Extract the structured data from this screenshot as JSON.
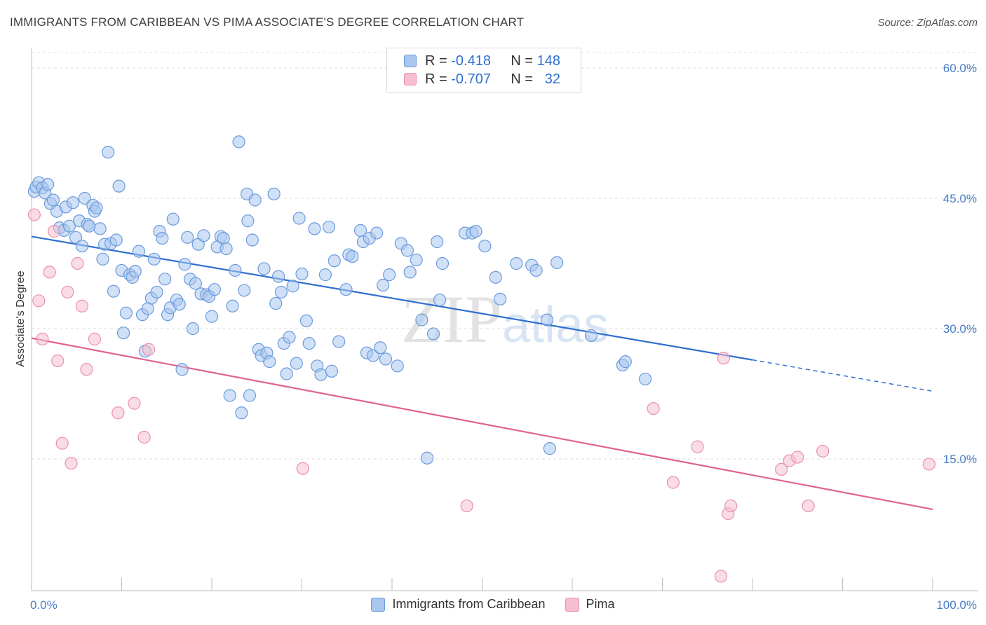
{
  "title": "IMMIGRANTS FROM CARIBBEAN VS PIMA ASSOCIATE'S DEGREE CORRELATION CHART",
  "source": "Source: ZipAtlas.com",
  "watermark": "ZIPatlas",
  "legend": {
    "rows": [
      {
        "r_label": "R =",
        "r_value": "-0.418",
        "n_label": "N =",
        "n_value": "148"
      },
      {
        "r_label": "R =",
        "r_value": "-0.707",
        "n_label": "N =",
        "n_value": "32"
      }
    ]
  },
  "colors": {
    "blue_fill": "#a9c6ef",
    "blue_stroke": "#6b9bdc",
    "blue_line": "#2f6fd0",
    "pink_fill": "#f5bfd0",
    "pink_stroke": "#e892ad",
    "pink_line": "#e0628f"
  },
  "chart_data": {
    "type": "scatter",
    "title": "IMMIGRANTS FROM CARIBBEAN VS PIMA ASSOCIATE'S DEGREE CORRELATION CHART",
    "xlabel": "",
    "ylabel": "Associate's Degree",
    "xlim": [
      0,
      100
    ],
    "ylim": [
      0,
      62
    ],
    "x_tick_labels": [
      "0.0%",
      "100.0%"
    ],
    "y_ticks": [
      15,
      30,
      45,
      60
    ],
    "y_tick_labels": [
      "15.0%",
      "30.0%",
      "45.0%",
      "60.0%"
    ],
    "grid": "horizontal dashed",
    "legend_position": "bottom",
    "series": [
      {
        "name": "Immigrants from Caribbean",
        "color": "#6b9bdc",
        "trend": {
          "x": [
            0,
            80
          ],
          "y": [
            40.6,
            26.4
          ],
          "dashed_extension": {
            "x": [
              80,
              100
            ],
            "y": [
              26.4,
              22.8
            ]
          }
        },
        "points": [
          [
            0.3,
            45.8
          ],
          [
            0.5,
            46.3
          ],
          [
            0.8,
            46.8
          ],
          [
            1.2,
            46.2
          ],
          [
            1.5,
            45.6
          ],
          [
            1.8,
            46.6
          ],
          [
            2.1,
            44.4
          ],
          [
            2.4,
            44.8
          ],
          [
            2.8,
            43.5
          ],
          [
            3.1,
            41.6
          ],
          [
            3.6,
            41.3
          ],
          [
            3.8,
            44.0
          ],
          [
            4.2,
            41.8
          ],
          [
            4.6,
            44.5
          ],
          [
            4.9,
            40.5
          ],
          [
            5.3,
            42.4
          ],
          [
            5.6,
            39.5
          ],
          [
            5.9,
            45.0
          ],
          [
            6.2,
            42.0
          ],
          [
            6.4,
            41.8
          ],
          [
            6.8,
            44.2
          ],
          [
            7.0,
            43.5
          ],
          [
            7.2,
            43.9
          ],
          [
            7.6,
            41.5
          ],
          [
            7.9,
            38.0
          ],
          [
            8.1,
            39.7
          ],
          [
            8.5,
            50.3
          ],
          [
            8.8,
            39.8
          ],
          [
            9.1,
            34.3
          ],
          [
            9.4,
            40.2
          ],
          [
            9.7,
            46.4
          ],
          [
            10.0,
            36.7
          ],
          [
            10.2,
            29.5
          ],
          [
            10.5,
            31.8
          ],
          [
            10.9,
            36.2
          ],
          [
            11.2,
            35.9
          ],
          [
            11.5,
            36.6
          ],
          [
            11.9,
            38.9
          ],
          [
            12.3,
            31.6
          ],
          [
            12.6,
            27.4
          ],
          [
            12.9,
            32.3
          ],
          [
            13.3,
            33.5
          ],
          [
            13.6,
            38.0
          ],
          [
            13.9,
            34.2
          ],
          [
            14.2,
            41.2
          ],
          [
            14.5,
            40.4
          ],
          [
            14.8,
            35.7
          ],
          [
            15.1,
            31.6
          ],
          [
            15.4,
            32.4
          ],
          [
            15.7,
            42.6
          ],
          [
            16.1,
            33.3
          ],
          [
            16.4,
            32.8
          ],
          [
            16.7,
            25.3
          ],
          [
            17.0,
            37.4
          ],
          [
            17.3,
            40.5
          ],
          [
            17.6,
            35.7
          ],
          [
            17.9,
            30.0
          ],
          [
            18.2,
            35.2
          ],
          [
            18.5,
            39.7
          ],
          [
            18.8,
            34.0
          ],
          [
            19.1,
            40.7
          ],
          [
            19.4,
            33.9
          ],
          [
            19.7,
            33.7
          ],
          [
            20.0,
            31.4
          ],
          [
            20.3,
            34.5
          ],
          [
            20.6,
            39.4
          ],
          [
            21.0,
            40.6
          ],
          [
            21.3,
            40.4
          ],
          [
            21.6,
            39.2
          ],
          [
            22.0,
            22.3
          ],
          [
            22.3,
            32.6
          ],
          [
            22.6,
            36.7
          ],
          [
            23.0,
            51.5
          ],
          [
            23.3,
            20.3
          ],
          [
            23.6,
            34.4
          ],
          [
            24.0,
            42.4
          ],
          [
            23.9,
            45.5
          ],
          [
            24.2,
            22.3
          ],
          [
            24.5,
            40.2
          ],
          [
            24.8,
            44.8
          ],
          [
            25.2,
            27.6
          ],
          [
            25.5,
            26.9
          ],
          [
            25.8,
            36.9
          ],
          [
            26.1,
            27.2
          ],
          [
            26.4,
            26.2
          ],
          [
            26.9,
            45.5
          ],
          [
            27.1,
            32.9
          ],
          [
            27.4,
            36.0
          ],
          [
            27.7,
            34.2
          ],
          [
            28.0,
            28.3
          ],
          [
            28.3,
            24.8
          ],
          [
            28.6,
            29.0
          ],
          [
            29.0,
            34.9
          ],
          [
            29.4,
            26.0
          ],
          [
            29.7,
            42.7
          ],
          [
            30.0,
            36.3
          ],
          [
            30.5,
            30.9
          ],
          [
            30.8,
            28.3
          ],
          [
            31.4,
            41.5
          ],
          [
            31.7,
            25.7
          ],
          [
            32.1,
            24.7
          ],
          [
            32.6,
            36.2
          ],
          [
            33.0,
            41.7
          ],
          [
            33.3,
            25.1
          ],
          [
            33.6,
            37.8
          ],
          [
            34.1,
            28.5
          ],
          [
            34.9,
            34.5
          ],
          [
            35.2,
            38.5
          ],
          [
            35.6,
            38.3
          ],
          [
            36.5,
            41.3
          ],
          [
            36.8,
            40.0
          ],
          [
            37.2,
            27.2
          ],
          [
            37.5,
            40.4
          ],
          [
            37.9,
            26.9
          ],
          [
            38.3,
            41.0
          ],
          [
            38.7,
            27.8
          ],
          [
            39.0,
            35.0
          ],
          [
            39.3,
            26.5
          ],
          [
            39.7,
            36.2
          ],
          [
            40.6,
            25.7
          ],
          [
            41.0,
            39.8
          ],
          [
            41.7,
            39.0
          ],
          [
            42.0,
            36.5
          ],
          [
            42.7,
            37.9
          ],
          [
            43.3,
            31.0
          ],
          [
            43.9,
            15.1
          ],
          [
            44.6,
            29.4
          ],
          [
            45.0,
            40.0
          ],
          [
            45.3,
            33.3
          ],
          [
            45.6,
            37.5
          ],
          [
            48.1,
            41.0
          ],
          [
            48.9,
            41.0
          ],
          [
            49.3,
            41.2
          ],
          [
            50.3,
            39.5
          ],
          [
            51.5,
            35.9
          ],
          [
            52.0,
            33.4
          ],
          [
            53.8,
            37.5
          ],
          [
            55.5,
            37.3
          ],
          [
            56.0,
            36.7
          ],
          [
            57.2,
            31.0
          ],
          [
            57.5,
            16.2
          ],
          [
            58.3,
            37.6
          ],
          [
            62.1,
            29.2
          ],
          [
            65.6,
            25.8
          ],
          [
            65.9,
            26.2
          ],
          [
            68.1,
            24.2
          ]
        ]
      },
      {
        "name": "Pima",
        "color": "#e892ad",
        "trend": {
          "x": [
            0,
            100
          ],
          "y": [
            28.9,
            9.2
          ]
        },
        "points": [
          [
            0.3,
            43.1
          ],
          [
            0.8,
            33.2
          ],
          [
            1.2,
            28.8
          ],
          [
            2.0,
            36.5
          ],
          [
            2.5,
            41.2
          ],
          [
            2.9,
            26.3
          ],
          [
            3.4,
            16.8
          ],
          [
            4.0,
            34.2
          ],
          [
            4.4,
            14.5
          ],
          [
            5.1,
            37.5
          ],
          [
            5.6,
            32.6
          ],
          [
            6.1,
            25.3
          ],
          [
            7.0,
            28.8
          ],
          [
            9.6,
            20.3
          ],
          [
            11.4,
            21.4
          ],
          [
            12.5,
            17.5
          ],
          [
            13.0,
            27.6
          ],
          [
            30.1,
            13.9
          ],
          [
            48.3,
            9.6
          ],
          [
            69.0,
            20.8
          ],
          [
            71.2,
            12.3
          ],
          [
            73.9,
            16.4
          ],
          [
            76.5,
            1.5
          ],
          [
            76.8,
            26.6
          ],
          [
            77.3,
            8.7
          ],
          [
            77.6,
            9.6
          ],
          [
            83.2,
            13.8
          ],
          [
            84.1,
            14.8
          ],
          [
            85.0,
            15.2
          ],
          [
            86.2,
            9.6
          ],
          [
            87.8,
            15.9
          ],
          [
            99.6,
            14.4
          ]
        ]
      }
    ]
  },
  "bottom_legend": [
    {
      "label": "Immigrants from Caribbean"
    },
    {
      "label": "Pima"
    }
  ]
}
